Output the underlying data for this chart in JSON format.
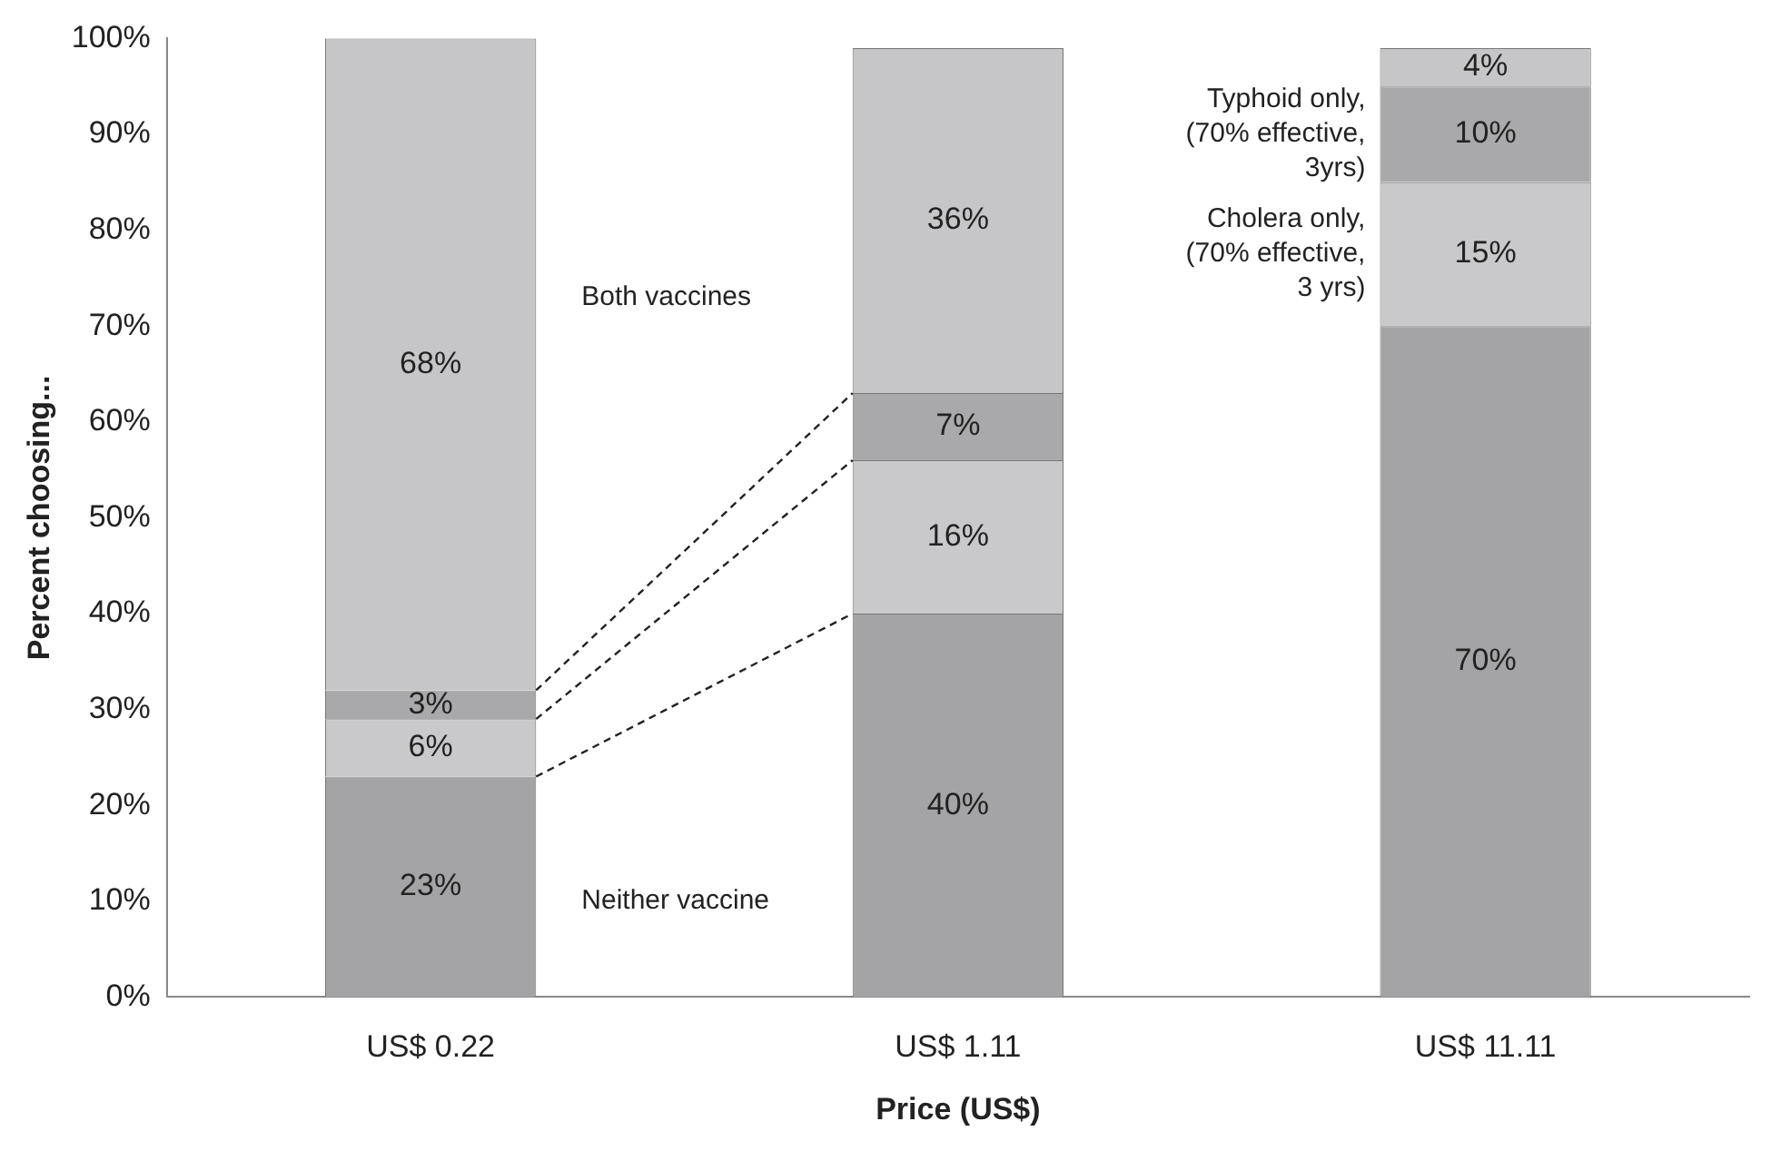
{
  "chart_data": {
    "type": "bar",
    "stacked": true,
    "xlabel": "Price (US$)",
    "ylabel": "Percent choosing...",
    "categories": [
      "US$ 0.22",
      "US$ 1.11",
      "US$ 11.11"
    ],
    "series": [
      {
        "name": "Neither vaccine",
        "color": "#a4a4a6",
        "values": [
          23,
          40,
          70
        ],
        "value_labels": [
          "23%",
          "40%",
          "70%"
        ]
      },
      {
        "name": "Cholera only, (70% effective, 3 yrs)",
        "color": "#c9c9cb",
        "values": [
          6,
          16,
          15
        ],
        "value_labels": [
          "6%",
          "16%",
          "15%"
        ]
      },
      {
        "name": "Typhoid only, (70% effective, 3yrs)",
        "color": "#a9a9ab",
        "values": [
          3,
          7,
          10
        ],
        "value_labels": [
          "3%",
          "7%",
          "10%"
        ]
      },
      {
        "name": "Both vaccines",
        "color": "#c6c6c8",
        "values": [
          68,
          36,
          4
        ],
        "value_labels": [
          "68%",
          "36%",
          "4%"
        ]
      }
    ],
    "ylim": [
      0,
      100
    ],
    "yticks": [
      {
        "value": 0,
        "label": "0%"
      },
      {
        "value": 10,
        "label": "10%"
      },
      {
        "value": 20,
        "label": "20%"
      },
      {
        "value": 30,
        "label": "30%"
      },
      {
        "value": 40,
        "label": "40%"
      },
      {
        "value": 50,
        "label": "50%"
      },
      {
        "value": 60,
        "label": "60%"
      },
      {
        "value": 70,
        "label": "70%"
      },
      {
        "value": 80,
        "label": "80%"
      },
      {
        "value": 90,
        "label": "90%"
      },
      {
        "value": 100,
        "label": "100%"
      }
    ],
    "grid": false,
    "legend": false
  }
}
